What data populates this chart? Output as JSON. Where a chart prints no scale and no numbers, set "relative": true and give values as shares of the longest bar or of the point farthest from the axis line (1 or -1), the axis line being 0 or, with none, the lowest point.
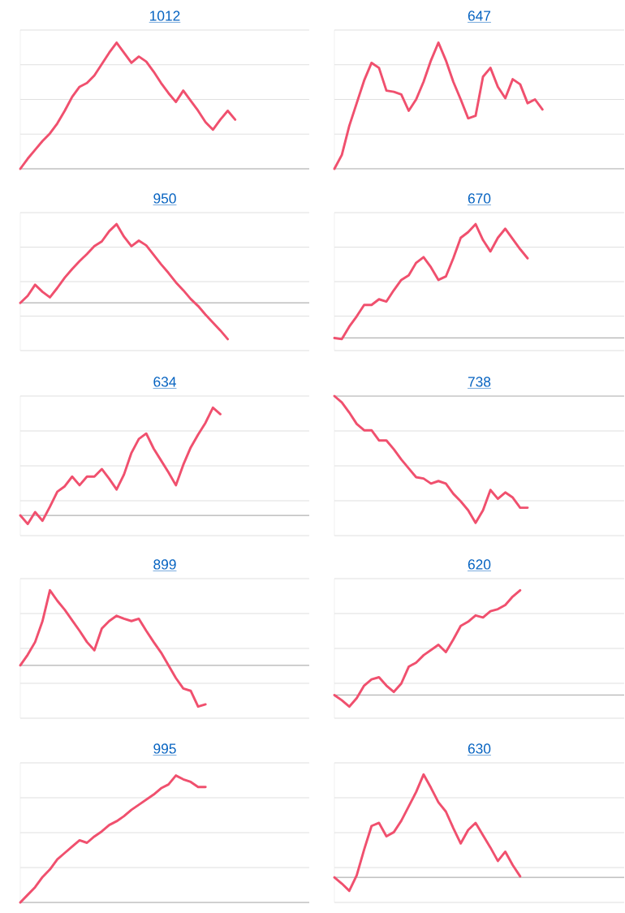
{
  "chart_data": [
    {
      "type": "line",
      "title": "1012",
      "relative": true,
      "grid": "y",
      "marker": "none",
      "line_style": "solid",
      "color": "#f0506e",
      "categories": [
        null,
        null,
        null,
        null,
        null,
        null,
        null,
        null,
        null,
        null,
        null,
        null,
        null,
        null,
        null,
        null,
        null,
        null,
        null,
        null,
        null,
        null,
        null,
        null,
        null,
        null,
        null,
        null,
        null,
        null,
        null,
        null,
        null,
        null,
        null,
        null,
        null,
        null,
        null,
        null
      ],
      "values": [
        0,
        0.08,
        0.15,
        0.22,
        0.28,
        0.36,
        0.46,
        0.57,
        0.65,
        0.68,
        0.74,
        0.83,
        0.92,
        1.0,
        0.92,
        0.84,
        0.89,
        0.85,
        0.77,
        0.68,
        0.6,
        0.53,
        0.62,
        0.54,
        0.46,
        0.37,
        0.31,
        0.39,
        0.46,
        0.39,
        null,
        null,
        null,
        null,
        null,
        null,
        null,
        null,
        null,
        null
      ]
    },
    {
      "type": "line",
      "title": "647",
      "relative": true,
      "grid": "y",
      "marker": "none",
      "line_style": "solid",
      "color": "#f0506e",
      "categories": [
        null,
        null,
        null,
        null,
        null,
        null,
        null,
        null,
        null,
        null,
        null,
        null,
        null,
        null,
        null,
        null,
        null,
        null,
        null,
        null,
        null,
        null,
        null,
        null,
        null,
        null,
        null,
        null,
        null,
        null,
        null,
        null,
        null,
        null,
        null,
        null,
        null,
        null,
        null,
        null
      ],
      "values": [
        0,
        0.11,
        0.34,
        0.52,
        0.7,
        0.84,
        0.8,
        0.62,
        0.61,
        0.59,
        0.46,
        0.55,
        0.69,
        0.86,
        1.0,
        0.86,
        0.69,
        0.55,
        0.4,
        0.42,
        0.73,
        0.8,
        0.65,
        0.56,
        0.71,
        0.67,
        0.52,
        0.55,
        0.47,
        null,
        null,
        null,
        null,
        null,
        null,
        null,
        null,
        null,
        null,
        null
      ]
    },
    {
      "type": "line",
      "title": "950",
      "relative": true,
      "grid": "y",
      "marker": "none",
      "line_style": "solid",
      "color": "#f0506e",
      "categories": [
        null,
        null,
        null,
        null,
        null,
        null,
        null,
        null,
        null,
        null,
        null,
        null,
        null,
        null,
        null,
        null,
        null,
        null,
        null,
        null,
        null,
        null,
        null,
        null,
        null,
        null,
        null,
        null,
        null,
        null,
        null,
        null,
        null,
        null,
        null,
        null,
        null,
        null,
        null,
        null
      ],
      "values": [
        0,
        0.09,
        0.23,
        0.14,
        0.07,
        0.19,
        0.32,
        0.43,
        0.53,
        0.62,
        0.72,
        0.78,
        0.91,
        1.0,
        0.84,
        0.72,
        0.79,
        0.73,
        0.61,
        0.49,
        0.38,
        0.26,
        0.16,
        0.05,
        -0.04,
        -0.15,
        -0.25,
        -0.35,
        -0.46,
        null,
        null,
        null,
        null,
        null,
        null,
        null,
        null,
        null,
        null,
        null
      ]
    },
    {
      "type": "line",
      "title": "670",
      "relative": true,
      "grid": "y",
      "marker": "none",
      "line_style": "solid",
      "color": "#f0506e",
      "categories": [
        null,
        null,
        null,
        null,
        null,
        null,
        null,
        null,
        null,
        null,
        null,
        null,
        null,
        null,
        null,
        null,
        null,
        null,
        null,
        null,
        null,
        null,
        null,
        null,
        null,
        null,
        null,
        null,
        null,
        null,
        null,
        null,
        null,
        null,
        null,
        null,
        null,
        null,
        null,
        null
      ],
      "values": [
        0,
        -0.01,
        0.1,
        0.19,
        0.29,
        0.29,
        0.34,
        0.32,
        0.42,
        0.51,
        0.55,
        0.66,
        0.71,
        0.62,
        0.51,
        0.54,
        0.7,
        0.88,
        0.93,
        1.0,
        0.86,
        0.76,
        0.88,
        0.96,
        0.87,
        0.78,
        0.7,
        null,
        null,
        null,
        null,
        null,
        null,
        null,
        null,
        null,
        null,
        null,
        null,
        null
      ]
    },
    {
      "type": "line",
      "title": "634",
      "relative": true,
      "grid": "y",
      "marker": "none",
      "line_style": "solid",
      "color": "#f0506e",
      "categories": [
        null,
        null,
        null,
        null,
        null,
        null,
        null,
        null,
        null,
        null,
        null,
        null,
        null,
        null,
        null,
        null,
        null,
        null,
        null,
        null,
        null,
        null,
        null,
        null,
        null,
        null,
        null,
        null,
        null,
        null,
        null,
        null,
        null,
        null,
        null,
        null,
        null,
        null,
        null,
        null
      ],
      "values": [
        0,
        -0.08,
        0.03,
        -0.05,
        0.08,
        0.22,
        0.27,
        0.36,
        0.28,
        0.36,
        0.36,
        0.43,
        0.34,
        0.24,
        0.38,
        0.58,
        0.71,
        0.76,
        0.62,
        0.51,
        0.4,
        0.28,
        0.47,
        0.63,
        0.75,
        0.86,
        1.0,
        0.94,
        null,
        null,
        null,
        null,
        null,
        null,
        null,
        null,
        null,
        null,
        null,
        null
      ]
    },
    {
      "type": "line",
      "title": "738",
      "relative": true,
      "grid": "y",
      "marker": "none",
      "line_style": "solid",
      "color": "#f0506e",
      "categories": [
        null,
        null,
        null,
        null,
        null,
        null,
        null,
        null,
        null,
        null,
        null,
        null,
        null,
        null,
        null,
        null,
        null,
        null,
        null,
        null,
        null,
        null,
        null,
        null,
        null,
        null,
        null,
        null,
        null,
        null,
        null,
        null,
        null,
        null,
        null,
        null,
        null,
        null,
        null,
        null
      ],
      "values": [
        0,
        -0.05,
        -0.13,
        -0.22,
        -0.27,
        -0.27,
        -0.35,
        -0.35,
        -0.42,
        -0.5,
        -0.57,
        -0.64,
        -0.65,
        -0.69,
        -0.67,
        -0.69,
        -0.77,
        -0.83,
        -0.9,
        -1.0,
        -0.9,
        -0.74,
        -0.81,
        -0.76,
        -0.8,
        -0.88,
        -0.88,
        null,
        null,
        null,
        null,
        null,
        null,
        null,
        null,
        null,
        null,
        null,
        null,
        null
      ]
    },
    {
      "type": "line",
      "title": "899",
      "relative": true,
      "grid": "y",
      "marker": "none",
      "line_style": "solid",
      "color": "#f0506e",
      "categories": [
        null,
        null,
        null,
        null,
        null,
        null,
        null,
        null,
        null,
        null,
        null,
        null,
        null,
        null,
        null,
        null,
        null,
        null,
        null,
        null,
        null,
        null,
        null,
        null,
        null,
        null,
        null,
        null,
        null,
        null,
        null,
        null,
        null,
        null,
        null,
        null,
        null,
        null,
        null,
        null
      ],
      "values": [
        0,
        0.14,
        0.31,
        0.59,
        1.0,
        0.86,
        0.74,
        0.6,
        0.46,
        0.31,
        0.2,
        0.49,
        0.59,
        0.66,
        0.62,
        0.59,
        0.62,
        0.46,
        0.31,
        0.17,
        0,
        -0.17,
        -0.31,
        -0.34,
        -0.55,
        -0.52,
        null,
        null,
        null,
        null,
        null,
        null,
        null,
        null,
        null,
        null,
        null,
        null,
        null,
        null
      ]
    },
    {
      "type": "line",
      "title": "620",
      "relative": true,
      "grid": "y",
      "marker": "none",
      "line_style": "solid",
      "color": "#f0506e",
      "categories": [
        null,
        null,
        null,
        null,
        null,
        null,
        null,
        null,
        null,
        null,
        null,
        null,
        null,
        null,
        null,
        null,
        null,
        null,
        null,
        null,
        null,
        null,
        null,
        null,
        null,
        null,
        null,
        null,
        null,
        null,
        null,
        null,
        null,
        null,
        null,
        null,
        null,
        null,
        null,
        null
      ],
      "values": [
        0,
        -0.05,
        -0.11,
        -0.03,
        0.09,
        0.15,
        0.17,
        0.09,
        0.03,
        0.11,
        0.27,
        0.31,
        0.38,
        0.43,
        0.48,
        0.41,
        0.53,
        0.66,
        0.7,
        0.76,
        0.74,
        0.8,
        0.82,
        0.86,
        0.94,
        1.0,
        null,
        null,
        null,
        null,
        null,
        null,
        null,
        null,
        null,
        null,
        null,
        null,
        null,
        null
      ]
    },
    {
      "type": "line",
      "title": "995",
      "relative": true,
      "grid": "y",
      "marker": "none",
      "line_style": "solid",
      "color": "#f0506e",
      "categories": [
        null,
        null,
        null,
        null,
        null,
        null,
        null,
        null,
        null,
        null,
        null,
        null,
        null,
        null,
        null,
        null,
        null,
        null,
        null,
        null,
        null,
        null,
        null,
        null,
        null,
        null,
        null,
        null,
        null,
        null,
        null,
        null,
        null,
        null,
        null,
        null,
        null,
        null,
        null,
        null
      ],
      "values": [
        0,
        0.06,
        0.12,
        0.2,
        0.26,
        0.34,
        0.39,
        0.44,
        0.49,
        0.47,
        0.52,
        0.56,
        0.61,
        0.64,
        0.68,
        0.73,
        0.77,
        0.81,
        0.85,
        0.9,
        0.93,
        1.0,
        0.97,
        0.95,
        0.91,
        0.91,
        null,
        null,
        null,
        null,
        null,
        null,
        null,
        null,
        null,
        null,
        null,
        null,
        null,
        null
      ]
    },
    {
      "type": "line",
      "title": "630",
      "relative": true,
      "grid": "y",
      "marker": "none",
      "line_style": "solid",
      "color": "#f0506e",
      "categories": [
        null,
        null,
        null,
        null,
        null,
        null,
        null,
        null,
        null,
        null,
        null,
        null,
        null,
        null,
        null,
        null,
        null,
        null,
        null,
        null,
        null,
        null,
        null,
        null,
        null,
        null,
        null,
        null,
        null,
        null,
        null,
        null,
        null,
        null,
        null,
        null,
        null,
        null,
        null,
        null
      ],
      "values": [
        0,
        -0.06,
        -0.13,
        0.02,
        0.27,
        0.5,
        0.53,
        0.4,
        0.44,
        0.55,
        0.69,
        0.83,
        1.0,
        0.87,
        0.73,
        0.64,
        0.48,
        0.33,
        0.46,
        0.53,
        0.41,
        0.29,
        0.16,
        0.25,
        0.12,
        0.01,
        null,
        null,
        null,
        null,
        null,
        null,
        null,
        null,
        null,
        null,
        null,
        null,
        null,
        null
      ]
    }
  ]
}
